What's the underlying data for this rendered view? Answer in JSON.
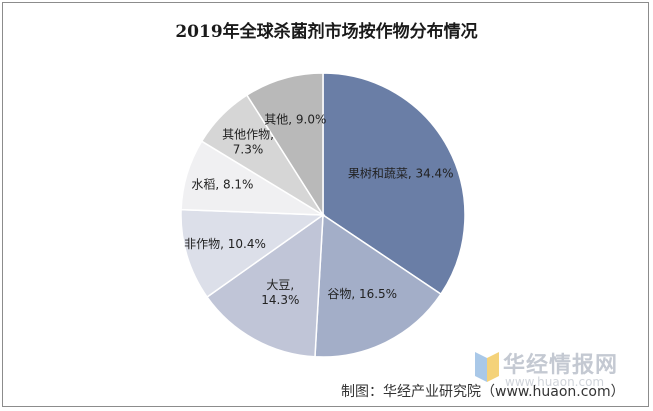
{
  "chart_data": {
    "type": "pie",
    "title": "2019年全球杀菌剂市场按作物分布情况",
    "slices": [
      {
        "label": "果树和蔬菜",
        "value": 34.4,
        "value_label": "34.4%",
        "color": "#6a7ea6"
      },
      {
        "label": "谷物",
        "value": 16.5,
        "value_label": "16.5%",
        "color": "#a3aec8"
      },
      {
        "label": "大豆",
        "value": 14.3,
        "value_label": "14.3%",
        "color": "#c0c5d7"
      },
      {
        "label": "非作物",
        "value": 10.4,
        "value_label": "10.4%",
        "color": "#dcdfe9"
      },
      {
        "label": "水稻",
        "value": 8.1,
        "value_label": "8.1%",
        "color": "#f0f0f2"
      },
      {
        "label": "其他作物",
        "value": 7.3,
        "value_label": "7.3%",
        "color": "#d6d6d6"
      },
      {
        "label": "其他",
        "value": 9.0,
        "value_label": "9.0%",
        "color": "#b9b9b9"
      }
    ]
  },
  "watermark": {
    "brand": "华经情报网",
    "url": "www.huaon.com"
  },
  "source_note": "制图：华经产业研究院（www.huaon.com）"
}
